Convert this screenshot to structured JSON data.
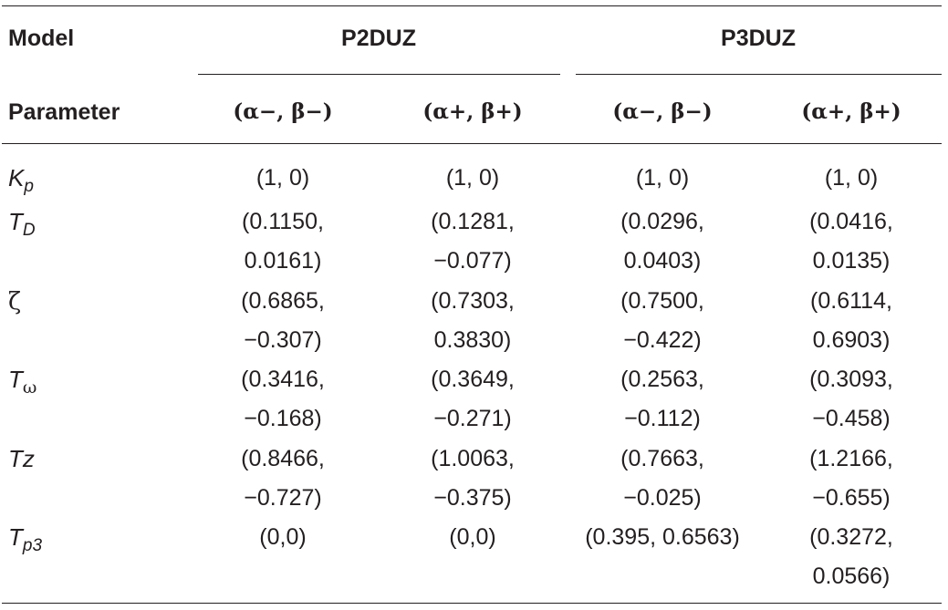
{
  "header": {
    "model_label": "Model",
    "parameter_label": "Parameter",
    "groups": [
      "P2DUZ",
      "P3DUZ"
    ],
    "pair_minus": "(α−, β−)",
    "pair_plus": "(α+, β+)"
  },
  "rows": [
    {
      "param": {
        "base": "K",
        "sub": "p"
      },
      "cells": [
        [
          "(1, 0)"
        ],
        [
          "(1, 0)"
        ],
        [
          "(1, 0)"
        ],
        [
          "(1, 0)"
        ]
      ]
    },
    {
      "param": {
        "base": "T",
        "sub": "D"
      },
      "cells": [
        [
          "(0.1150,",
          "0.0161)"
        ],
        [
          "(0.1281,",
          "−0.077)"
        ],
        [
          "(0.0296,",
          "0.0403)"
        ],
        [
          "(0.0416,",
          "0.0135)"
        ]
      ]
    },
    {
      "param": {
        "base": "ζ",
        "sub": ""
      },
      "cells": [
        [
          "(0.6865,",
          "−0.307)"
        ],
        [
          "(0.7303,",
          "0.3830)"
        ],
        [
          "(0.7500,",
          "−0.422)"
        ],
        [
          "(0.6114,",
          "0.6903)"
        ]
      ]
    },
    {
      "param": {
        "base": "T",
        "sub": "ω"
      },
      "cells": [
        [
          "(0.3416,",
          "−0.168)"
        ],
        [
          "(0.3649,",
          "−0.271)"
        ],
        [
          "(0.2563,",
          "−0.112)"
        ],
        [
          "(0.3093,",
          "−0.458)"
        ]
      ]
    },
    {
      "param": {
        "base": "Tz",
        "sub": ""
      },
      "cells": [
        [
          "(0.8466,",
          "−0.727)"
        ],
        [
          "(1.0063,",
          "−0.375)"
        ],
        [
          "(0.7663,",
          "−0.025)"
        ],
        [
          "(1.2166,",
          "−0.655)"
        ]
      ]
    },
    {
      "param": {
        "base": "T",
        "sub": "p3"
      },
      "cells": [
        [
          "(0,0)"
        ],
        [
          "(0,0)"
        ],
        [
          "(0.395, 0.6563)"
        ],
        [
          "(0.3272,",
          "0.0566)"
        ]
      ]
    }
  ]
}
